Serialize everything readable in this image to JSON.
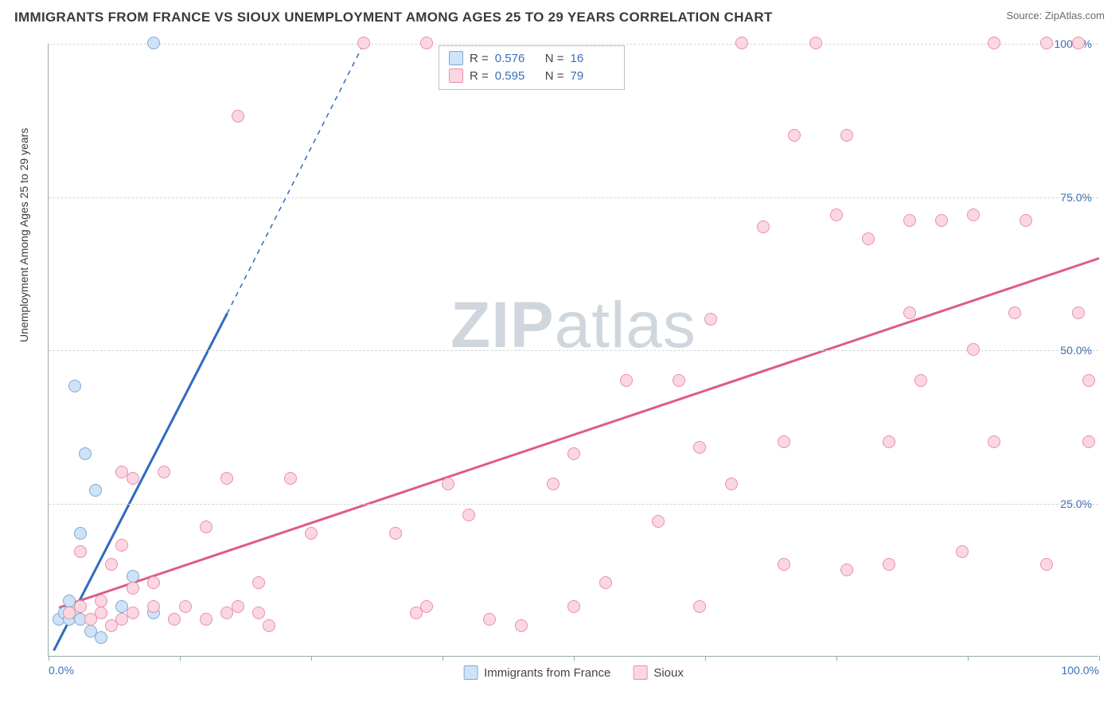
{
  "title": "IMMIGRANTS FROM FRANCE VS SIOUX UNEMPLOYMENT AMONG AGES 25 TO 29 YEARS CORRELATION CHART",
  "source": "Source: ZipAtlas.com",
  "watermark_a": "ZIP",
  "watermark_b": "atlas",
  "chart": {
    "type": "scatter",
    "xlim": [
      0,
      100
    ],
    "ylim": [
      0,
      100
    ],
    "xticks": [
      0,
      12.5,
      25,
      37.5,
      50,
      62.5,
      75,
      87.5,
      100
    ],
    "yticks": [
      25,
      50,
      75,
      100
    ],
    "xtick_labels": {
      "0": "0.0%",
      "100": "100.0%"
    },
    "ytick_labels": {
      "25": "25.0%",
      "50": "50.0%",
      "75": "75.0%",
      "100": "100.0%"
    },
    "ylabel": "Unemployment Among Ages 25 to 29 years",
    "grid_color": "#d6d6d6",
    "tick_color": "#3d6fb6",
    "marker_radius": 8,
    "marker_stroke_width": 1.5,
    "trend_line_width": 3,
    "series": [
      {
        "name": "Immigrants from France",
        "fill": "#cfe2f6",
        "stroke": "#7fa9d8",
        "line_stroke": "#2e6bc0",
        "r": 0.576,
        "n": 16,
        "trend": {
          "x1": 0.5,
          "y1": 1,
          "x2": 17,
          "y2": 56,
          "dash_to_x": 30,
          "dash_to_y": 100
        },
        "points": [
          [
            1,
            6
          ],
          [
            1.5,
            7
          ],
          [
            2,
            6
          ],
          [
            2.5,
            7
          ],
          [
            3,
            6
          ],
          [
            2,
            9
          ],
          [
            4,
            4
          ],
          [
            3,
            20
          ],
          [
            3.5,
            33
          ],
          [
            2.5,
            44
          ],
          [
            4.5,
            27
          ],
          [
            8,
            13
          ],
          [
            7,
            8
          ],
          [
            10,
            7
          ],
          [
            10,
            100
          ],
          [
            5,
            3
          ]
        ]
      },
      {
        "name": "Sioux",
        "fill": "#fbd7e1",
        "stroke": "#e890ab",
        "line_stroke": "#e05a87",
        "r": 0.595,
        "n": 79,
        "trend": {
          "x1": 1,
          "y1": 8,
          "x2": 100,
          "y2": 65
        },
        "points": [
          [
            2,
            7
          ],
          [
            3,
            8
          ],
          [
            4,
            6
          ],
          [
            5,
            7
          ],
          [
            6,
            5
          ],
          [
            7,
            6
          ],
          [
            8,
            7
          ],
          [
            5,
            9
          ],
          [
            3,
            17
          ],
          [
            6,
            15
          ],
          [
            7,
            18
          ],
          [
            8,
            11
          ],
          [
            10,
            8
          ],
          [
            12,
            6
          ],
          [
            13,
            8
          ],
          [
            15,
            6
          ],
          [
            17,
            7
          ],
          [
            20,
            7
          ],
          [
            8,
            29
          ],
          [
            10,
            12
          ],
          [
            15,
            21
          ],
          [
            17,
            29
          ],
          [
            18,
            8
          ],
          [
            20,
            12
          ],
          [
            25,
            20
          ],
          [
            23,
            29
          ],
          [
            21,
            5
          ],
          [
            33,
            20
          ],
          [
            35,
            7
          ],
          [
            40,
            23
          ],
          [
            42,
            6
          ],
          [
            36,
            8
          ],
          [
            38,
            28
          ],
          [
            45,
            5
          ],
          [
            50,
            8
          ],
          [
            48,
            28
          ],
          [
            50,
            33
          ],
          [
            58,
            22
          ],
          [
            62,
            8
          ],
          [
            55,
            45
          ],
          [
            53,
            12
          ],
          [
            62,
            34
          ],
          [
            60,
            45
          ],
          [
            63,
            55
          ],
          [
            66,
            100
          ],
          [
            65,
            28
          ],
          [
            70,
            35
          ],
          [
            68,
            70
          ],
          [
            73,
            100
          ],
          [
            75,
            72
          ],
          [
            78,
            68
          ],
          [
            71,
            85
          ],
          [
            76,
            85
          ],
          [
            80,
            35
          ],
          [
            82,
            56
          ],
          [
            80,
            15
          ],
          [
            82,
            71
          ],
          [
            85,
            71
          ],
          [
            83,
            45
          ],
          [
            87,
            17
          ],
          [
            88,
            50
          ],
          [
            90,
            100
          ],
          [
            90,
            35
          ],
          [
            92,
            56
          ],
          [
            93,
            71
          ],
          [
            95,
            15
          ],
          [
            95,
            100
          ],
          [
            98,
            56
          ],
          [
            98,
            100
          ],
          [
            99,
            45
          ],
          [
            99,
            35
          ],
          [
            7,
            30
          ],
          [
            11,
            30
          ],
          [
            18,
            88
          ],
          [
            30,
            100
          ],
          [
            36,
            100
          ],
          [
            76,
            14
          ],
          [
            88,
            72
          ],
          [
            70,
            15
          ]
        ]
      }
    ]
  },
  "legend_top": {
    "r_label": "R =",
    "n_label": "N ="
  },
  "legend_bottom": [
    {
      "label": "Immigrants from France",
      "fill": "#cfe2f6",
      "stroke": "#7fa9d8"
    },
    {
      "label": "Sioux",
      "fill": "#fbd7e1",
      "stroke": "#e890ab"
    }
  ]
}
